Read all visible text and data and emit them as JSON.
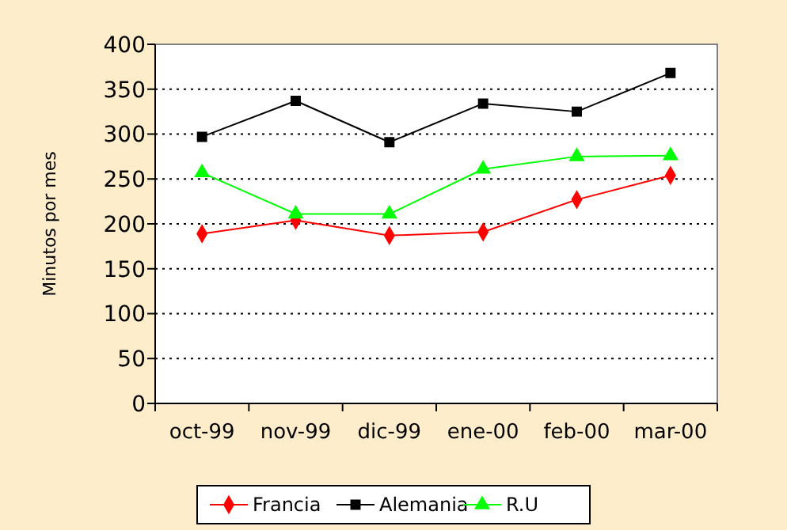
{
  "chart_data": {
    "type": "line",
    "ylabel": "Minutos por mes",
    "categories": [
      "oct-99",
      "nov-99",
      "dic-99",
      "ene-00",
      "feb-00",
      "mar-00"
    ],
    "ylim": [
      0,
      400
    ],
    "yticks": [
      0,
      50,
      100,
      150,
      200,
      250,
      300,
      350,
      400
    ],
    "grid": "y",
    "legend": "bottom",
    "line_style": "solid",
    "series": [
      {
        "name": "Francia",
        "color": "#ff0000",
        "marker": "diamond",
        "values": [
          189,
          204,
          187,
          191,
          227,
          254
        ]
      },
      {
        "name": "Alemania",
        "color": "#000000",
        "marker": "square",
        "values": [
          297,
          337,
          291,
          334,
          325,
          368
        ]
      },
      {
        "name": "R.U",
        "color": "#00ff00",
        "marker": "triangle",
        "values": [
          257,
          211,
          211,
          261,
          275,
          276
        ]
      }
    ]
  }
}
